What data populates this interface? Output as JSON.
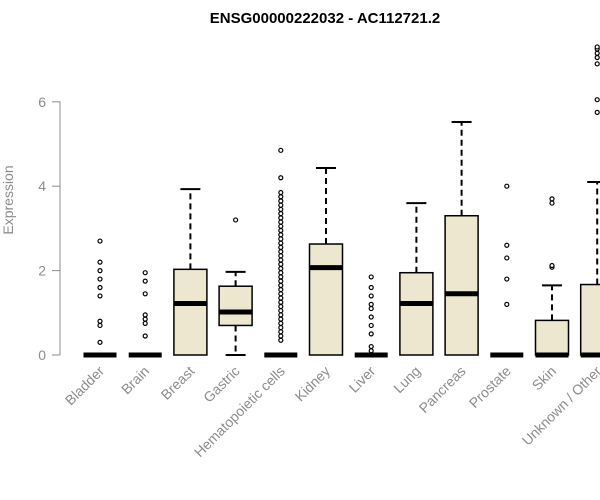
{
  "chart_data": {
    "type": "boxplot",
    "title": "ENSG00000222032 - AC112721.2",
    "xlabel": "",
    "ylabel": "Expression",
    "ylim": [
      0,
      7.5
    ],
    "yticks": [
      0,
      2,
      4,
      6
    ],
    "grid": false,
    "colors": {
      "box_fill": "#ede7cf",
      "stroke": "#000000",
      "axis_text": "#8c8c8c",
      "title": "#000000"
    },
    "categories": [
      "Bladder",
      "Brain",
      "Breast",
      "Gastric",
      "Hematopoietic cells",
      "Kidney",
      "Liver",
      "Lung",
      "Pancreas",
      "Prostate",
      "Skin",
      "Unknown / Other"
    ],
    "boxes": [
      {
        "category": "Bladder",
        "min": 0,
        "q1": 0,
        "median": 0,
        "q3": 0,
        "max": 0,
        "outliers": [
          0.3,
          0.7,
          0.8,
          1.4,
          1.6,
          1.8,
          2.0,
          2.2,
          2.7
        ]
      },
      {
        "category": "Brain",
        "min": 0,
        "q1": 0,
        "median": 0,
        "q3": 0,
        "max": 0,
        "outliers": [
          0.45,
          0.75,
          0.85,
          0.95,
          1.45,
          1.75,
          1.95
        ]
      },
      {
        "category": "Breast",
        "min": 0,
        "q1": 0,
        "median": 1.22,
        "q3": 2.03,
        "max": 3.93,
        "outliers": []
      },
      {
        "category": "Gastric",
        "min": 0,
        "q1": 0.7,
        "median": 1.02,
        "q3": 1.63,
        "max": 1.97,
        "outliers": [
          3.2
        ]
      },
      {
        "category": "Hematopoietic cells",
        "min": 0,
        "q1": 0,
        "median": 0,
        "q3": 0,
        "max": 0,
        "outliers": [
          0.35,
          0.45,
          0.55,
          0.65,
          0.75,
          0.85,
          0.95,
          1.05,
          1.15,
          1.25,
          1.35,
          1.45,
          1.55,
          1.65,
          1.75,
          1.85,
          1.95,
          2.05,
          2.15,
          2.25,
          2.35,
          2.45,
          2.55,
          2.65,
          2.75,
          2.85,
          2.95,
          3.05,
          3.15,
          3.25,
          3.35,
          3.45,
          3.55,
          3.65,
          3.75,
          3.85,
          4.2,
          4.85
        ]
      },
      {
        "category": "Kidney",
        "min": 0,
        "q1": 0,
        "median": 2.07,
        "q3": 2.63,
        "max": 4.43,
        "outliers": []
      },
      {
        "category": "Liver",
        "min": 0,
        "q1": 0,
        "median": 0,
        "q3": 0,
        "max": 0,
        "outliers": [
          0.1,
          0.2,
          0.5,
          0.7,
          0.9,
          1.1,
          1.2,
          1.4,
          1.6,
          1.85
        ]
      },
      {
        "category": "Lung",
        "min": 0,
        "q1": 0,
        "median": 1.22,
        "q3": 1.95,
        "max": 3.6,
        "outliers": []
      },
      {
        "category": "Pancreas",
        "min": 0,
        "q1": 0,
        "median": 1.45,
        "q3": 3.3,
        "max": 5.52,
        "outliers": []
      },
      {
        "category": "Prostate",
        "min": 0,
        "q1": 0,
        "median": 0,
        "q3": 0,
        "max": 0,
        "outliers": [
          1.2,
          1.8,
          2.3,
          2.6,
          4.0
        ]
      },
      {
        "category": "Skin",
        "min": 0,
        "q1": 0,
        "median": 0,
        "q3": 0.82,
        "max": 1.65,
        "outliers": [
          2.08,
          2.12,
          3.6,
          3.7
        ]
      },
      {
        "category": "Unknown / Other",
        "min": 0,
        "q1": 0,
        "median": 0,
        "q3": 1.67,
        "max": 4.1,
        "outliers": [
          5.75,
          6.05,
          6.9,
          7.05,
          7.15,
          7.25,
          7.3
        ]
      }
    ]
  }
}
